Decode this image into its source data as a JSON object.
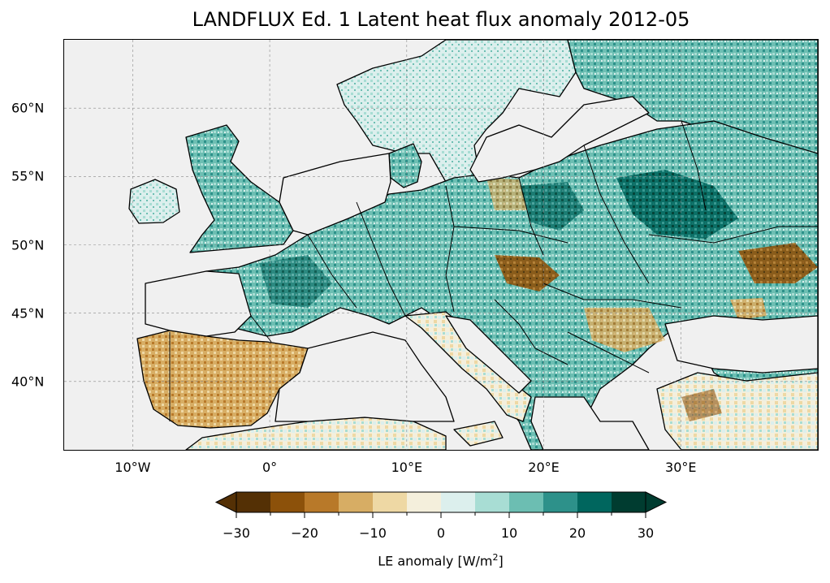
{
  "title": "LANDFLUX Ed. 1 Latent heat flux anomaly 2012-05",
  "map": {
    "projection": "PlateCarree",
    "lon_range": [
      -15,
      40
    ],
    "lat_range": [
      35,
      65
    ],
    "lat_ticks": [
      {
        "value": 40,
        "label": "40°N"
      },
      {
        "value": 45,
        "label": "45°N"
      },
      {
        "value": 50,
        "label": "50°N"
      },
      {
        "value": 55,
        "label": "55°N"
      },
      {
        "value": 60,
        "label": "60°N"
      }
    ],
    "lon_ticks": [
      {
        "value": -10,
        "label": "10°W"
      },
      {
        "value": 0,
        "label": "0°"
      },
      {
        "value": 10,
        "label": "10°E"
      },
      {
        "value": 20,
        "label": "20°E"
      },
      {
        "value": 30,
        "label": "30°E"
      }
    ],
    "gridlines": true,
    "ocean_color": "#f0f0f0",
    "coastline_color": "#000000"
  },
  "colorbar": {
    "label_prefix": "LE anomaly [W/m",
    "label_sup": "2",
    "label_suffix": "]",
    "levels": [
      -30,
      -25,
      -20,
      -15,
      -10,
      -5,
      0,
      5,
      10,
      15,
      20,
      25,
      30
    ],
    "tick_labels": [
      {
        "value": -30,
        "label": "−30"
      },
      {
        "value": -20,
        "label": "−20"
      },
      {
        "value": -10,
        "label": "−10"
      },
      {
        "value": 0,
        "label": "0"
      },
      {
        "value": 10,
        "label": "10"
      },
      {
        "value": 20,
        "label": "20"
      },
      {
        "value": 30,
        "label": "30"
      }
    ],
    "colors": [
      "#543005",
      "#8c510a",
      "#b87929",
      "#d7ad64",
      "#eed8a4",
      "#f4efdc",
      "#dcefed",
      "#a8ddd4",
      "#6cbeb2",
      "#2d918a",
      "#00665e",
      "#003c30"
    ],
    "extend": "both"
  }
}
